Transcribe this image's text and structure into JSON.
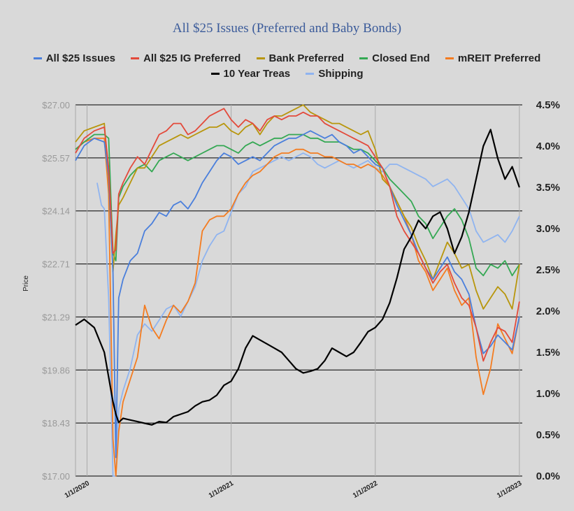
{
  "chart_data": {
    "type": "line",
    "title": "All $25 Issues (Preferred and Baby Bonds)",
    "ylabel": "Price",
    "ylim": [
      17.0,
      27.0
    ],
    "y2lim": [
      0.0,
      4.5
    ],
    "yticks": [
      "$17.00",
      "$18.43",
      "$19.86",
      "$21.29",
      "$22.71",
      "$24.14",
      "$25.57",
      "$27.00"
    ],
    "y2ticks": [
      "0.0%",
      "0.5%",
      "1.0%",
      "1.5%",
      "2.0%",
      "2.5%",
      "3.0%",
      "3.5%",
      "4.0%",
      "4.5%"
    ],
    "xticks": [
      "1/1/2020",
      "1/1/2021",
      "1/1/2022",
      "1/1/2023"
    ],
    "xticks_pos": [
      2020,
      2021,
      2022,
      2023
    ],
    "xlim": [
      2019.92,
      2023.02
    ],
    "grid": "horizontal",
    "legend_position": "top",
    "series": [
      {
        "name": "All $25 Issues",
        "color": "#4a7fdc",
        "axis": "left",
        "x": [
          2019.92,
          2019.98,
          2020.05,
          2020.12,
          2020.15,
          2020.18,
          2020.2,
          2020.22,
          2020.25,
          2020.3,
          2020.35,
          2020.4,
          2020.45,
          2020.5,
          2020.55,
          2020.6,
          2020.65,
          2020.7,
          2020.75,
          2020.8,
          2020.85,
          2020.9,
          2020.95,
          2021.0,
          2021.05,
          2021.1,
          2021.15,
          2021.2,
          2021.25,
          2021.3,
          2021.35,
          2021.4,
          2021.45,
          2021.5,
          2021.55,
          2021.6,
          2021.65,
          2021.7,
          2021.75,
          2021.8,
          2021.85,
          2021.9,
          2021.95,
          2022.0,
          2022.05,
          2022.1,
          2022.15,
          2022.2,
          2022.25,
          2022.3,
          2022.35,
          2022.4,
          2022.45,
          2022.5,
          2022.55,
          2022.6,
          2022.65,
          2022.7,
          2022.75,
          2022.8,
          2022.85,
          2022.9,
          2022.95,
          2023.0
        ],
        "values": [
          25.5,
          25.9,
          26.1,
          26.0,
          25.1,
          22.5,
          17.5,
          21.8,
          22.3,
          22.8,
          23.0,
          23.6,
          23.8,
          24.1,
          24.0,
          24.3,
          24.4,
          24.2,
          24.5,
          24.9,
          25.2,
          25.5,
          25.7,
          25.6,
          25.4,
          25.5,
          25.6,
          25.5,
          25.7,
          25.9,
          26.0,
          26.1,
          26.1,
          26.2,
          26.3,
          26.2,
          26.1,
          26.2,
          26.0,
          25.9,
          25.7,
          25.8,
          25.6,
          25.4,
          25.3,
          24.8,
          24.3,
          23.9,
          23.5,
          23.0,
          22.6,
          22.3,
          22.6,
          22.9,
          22.5,
          22.3,
          21.9,
          21.0,
          20.3,
          20.5,
          20.8,
          20.6,
          20.4,
          21.3
        ]
      },
      {
        "name": "All $25 IG Preferred",
        "color": "#e34a3b",
        "axis": "left",
        "x": [
          2019.92,
          2019.98,
          2020.05,
          2020.12,
          2020.15,
          2020.18,
          2020.2,
          2020.22,
          2020.25,
          2020.3,
          2020.35,
          2020.4,
          2020.45,
          2020.5,
          2020.55,
          2020.6,
          2020.65,
          2020.7,
          2020.75,
          2020.8,
          2020.85,
          2020.9,
          2020.95,
          2021.0,
          2021.05,
          2021.1,
          2021.15,
          2021.2,
          2021.25,
          2021.3,
          2021.35,
          2021.4,
          2021.45,
          2021.5,
          2021.55,
          2021.6,
          2021.65,
          2021.7,
          2021.75,
          2021.8,
          2021.85,
          2021.9,
          2021.95,
          2022.0,
          2022.05,
          2022.1,
          2022.15,
          2022.2,
          2022.25,
          2022.3,
          2022.35,
          2022.4,
          2022.45,
          2022.5,
          2022.55,
          2022.6,
          2022.65,
          2022.7,
          2022.75,
          2022.8,
          2022.85,
          2022.9,
          2022.95,
          2023.0
        ],
        "values": [
          25.7,
          26.1,
          26.3,
          26.4,
          25.3,
          23.0,
          23.1,
          24.6,
          24.9,
          25.3,
          25.6,
          25.4,
          25.8,
          26.2,
          26.3,
          26.5,
          26.5,
          26.2,
          26.3,
          26.5,
          26.7,
          26.8,
          26.9,
          26.6,
          26.4,
          26.6,
          26.5,
          26.3,
          26.6,
          26.7,
          26.6,
          26.7,
          26.7,
          26.8,
          26.7,
          26.7,
          26.5,
          26.4,
          26.3,
          26.2,
          26.1,
          26.0,
          25.9,
          25.6,
          25.3,
          24.8,
          24.0,
          23.6,
          23.3,
          23.0,
          22.6,
          22.2,
          22.5,
          22.7,
          22.2,
          21.8,
          21.6,
          21.0,
          20.1,
          20.6,
          21.0,
          20.9,
          20.6,
          21.7
        ]
      },
      {
        "name": "Bank Preferred",
        "color": "#b8960c",
        "axis": "left",
        "x": [
          2019.92,
          2019.98,
          2020.05,
          2020.12,
          2020.15,
          2020.18,
          2020.2,
          2020.22,
          2020.25,
          2020.3,
          2020.35,
          2020.4,
          2020.45,
          2020.5,
          2020.55,
          2020.6,
          2020.65,
          2020.7,
          2020.75,
          2020.8,
          2020.85,
          2020.9,
          2020.95,
          2021.0,
          2021.05,
          2021.1,
          2021.15,
          2021.2,
          2021.25,
          2021.3,
          2021.35,
          2021.4,
          2021.45,
          2021.5,
          2021.55,
          2021.6,
          2021.65,
          2021.7,
          2021.75,
          2021.8,
          2021.85,
          2021.9,
          2021.95,
          2022.0,
          2022.05,
          2022.1,
          2022.15,
          2022.2,
          2022.25,
          2022.3,
          2022.35,
          2022.4,
          2022.45,
          2022.5,
          2022.55,
          2022.6,
          2022.65,
          2022.7,
          2022.75,
          2022.8,
          2022.85,
          2022.9,
          2022.95,
          2023.0
        ],
        "values": [
          26.0,
          26.3,
          26.4,
          26.5,
          25.0,
          22.5,
          23.5,
          24.3,
          24.5,
          24.9,
          25.3,
          25.3,
          25.6,
          25.9,
          26.0,
          26.1,
          26.2,
          26.1,
          26.2,
          26.3,
          26.4,
          26.4,
          26.5,
          26.3,
          26.2,
          26.4,
          26.5,
          26.2,
          26.5,
          26.7,
          26.7,
          26.8,
          26.9,
          27.0,
          26.8,
          26.7,
          26.6,
          26.5,
          26.5,
          26.4,
          26.3,
          26.2,
          26.3,
          25.8,
          25.0,
          24.8,
          24.4,
          24.0,
          23.7,
          23.2,
          22.8,
          22.3,
          22.8,
          23.3,
          23.0,
          22.6,
          22.7,
          22.0,
          21.5,
          21.8,
          22.1,
          21.9,
          21.5,
          22.7
        ]
      },
      {
        "name": "Closed End",
        "color": "#34a853",
        "axis": "left",
        "x": [
          2019.92,
          2019.98,
          2020.05,
          2020.12,
          2020.15,
          2020.18,
          2020.2,
          2020.22,
          2020.25,
          2020.3,
          2020.35,
          2020.4,
          2020.45,
          2020.5,
          2020.55,
          2020.6,
          2020.65,
          2020.7,
          2020.75,
          2020.8,
          2020.85,
          2020.9,
          2020.95,
          2021.0,
          2021.05,
          2021.1,
          2021.15,
          2021.2,
          2021.25,
          2021.3,
          2021.35,
          2021.4,
          2021.45,
          2021.5,
          2021.55,
          2021.6,
          2021.65,
          2021.7,
          2021.75,
          2021.8,
          2021.85,
          2021.9,
          2021.95,
          2022.0,
          2022.05,
          2022.1,
          2022.15,
          2022.2,
          2022.25,
          2022.3,
          2022.35,
          2022.4,
          2022.45,
          2022.5,
          2022.55,
          2022.6,
          2022.65,
          2022.7,
          2022.75,
          2022.8,
          2022.85,
          2022.9,
          2022.95,
          2023.0
        ],
        "values": [
          25.8,
          26.0,
          26.2,
          26.2,
          26.1,
          23.0,
          22.8,
          24.5,
          24.8,
          25.1,
          25.3,
          25.4,
          25.2,
          25.5,
          25.6,
          25.7,
          25.6,
          25.5,
          25.6,
          25.7,
          25.8,
          25.9,
          25.9,
          25.8,
          25.7,
          25.9,
          26.0,
          25.9,
          26.0,
          26.1,
          26.1,
          26.2,
          26.2,
          26.2,
          26.1,
          26.1,
          26.0,
          26.0,
          26.0,
          25.9,
          25.8,
          25.8,
          25.7,
          25.5,
          25.3,
          25.0,
          24.8,
          24.6,
          24.4,
          24.0,
          23.8,
          23.4,
          23.7,
          24.0,
          24.2,
          23.9,
          23.4,
          22.6,
          22.4,
          22.7,
          22.6,
          22.8,
          22.4,
          22.7
        ]
      },
      {
        "name": "mREIT Preferred",
        "color": "#f47c20",
        "axis": "left",
        "x": [
          2019.92,
          2019.98,
          2020.05,
          2020.12,
          2020.15,
          2020.18,
          2020.2,
          2020.22,
          2020.25,
          2020.3,
          2020.35,
          2020.4,
          2020.45,
          2020.5,
          2020.55,
          2020.6,
          2020.65,
          2020.7,
          2020.75,
          2020.8,
          2020.85,
          2020.9,
          2020.95,
          2021.0,
          2021.05,
          2021.1,
          2021.15,
          2021.2,
          2021.25,
          2021.3,
          2021.35,
          2021.4,
          2021.45,
          2021.5,
          2021.55,
          2021.6,
          2021.65,
          2021.7,
          2021.75,
          2021.8,
          2021.85,
          2021.9,
          2021.95,
          2022.0,
          2022.05,
          2022.1,
          2022.15,
          2022.2,
          2022.25,
          2022.3,
          2022.35,
          2022.4,
          2022.45,
          2022.5,
          2022.55,
          2022.6,
          2022.65,
          2022.7,
          2022.75,
          2022.8,
          2022.85,
          2022.9,
          2022.95,
          2023.0
        ],
        "values": [
          25.8,
          26.0,
          26.1,
          26.1,
          24.6,
          18.0,
          17.0,
          18.2,
          19.0,
          19.6,
          20.2,
          21.6,
          21.0,
          20.7,
          21.2,
          21.6,
          21.4,
          21.7,
          22.2,
          23.6,
          23.9,
          24.0,
          24.0,
          24.2,
          24.6,
          24.9,
          25.1,
          25.2,
          25.4,
          25.6,
          25.7,
          25.7,
          25.8,
          25.8,
          25.7,
          25.7,
          25.6,
          25.6,
          25.5,
          25.4,
          25.4,
          25.3,
          25.4,
          25.3,
          25.1,
          24.8,
          24.4,
          24.0,
          23.5,
          22.8,
          22.5,
          22.0,
          22.3,
          22.6,
          22.0,
          21.6,
          21.8,
          20.2,
          19.2,
          19.9,
          21.1,
          20.7,
          20.3,
          21.3
        ]
      },
      {
        "name": "10 Year Treas",
        "color": "#000000",
        "axis": "right",
        "x": [
          2019.92,
          2019.98,
          2020.05,
          2020.12,
          2020.15,
          2020.18,
          2020.2,
          2020.22,
          2020.25,
          2020.3,
          2020.35,
          2020.4,
          2020.45,
          2020.5,
          2020.55,
          2020.6,
          2020.65,
          2020.7,
          2020.75,
          2020.8,
          2020.85,
          2020.9,
          2020.95,
          2021.0,
          2021.05,
          2021.1,
          2021.15,
          2021.2,
          2021.25,
          2021.3,
          2021.35,
          2021.4,
          2021.45,
          2021.5,
          2021.55,
          2021.6,
          2021.65,
          2021.7,
          2021.75,
          2021.8,
          2021.85,
          2021.9,
          2021.95,
          2022.0,
          2022.05,
          2022.1,
          2022.15,
          2022.2,
          2022.25,
          2022.3,
          2022.35,
          2022.4,
          2022.45,
          2022.5,
          2022.55,
          2022.6,
          2022.65,
          2022.7,
          2022.75,
          2022.8,
          2022.85,
          2022.9,
          2022.95,
          2023.0
        ],
        "values": [
          1.83,
          1.9,
          1.8,
          1.5,
          1.2,
          0.9,
          0.75,
          0.65,
          0.7,
          0.68,
          0.66,
          0.64,
          0.62,
          0.66,
          0.65,
          0.72,
          0.75,
          0.78,
          0.85,
          0.9,
          0.92,
          0.98,
          1.1,
          1.15,
          1.3,
          1.55,
          1.7,
          1.65,
          1.6,
          1.55,
          1.5,
          1.4,
          1.3,
          1.25,
          1.27,
          1.3,
          1.4,
          1.55,
          1.5,
          1.45,
          1.5,
          1.62,
          1.75,
          1.8,
          1.9,
          2.1,
          2.4,
          2.75,
          2.9,
          3.1,
          3.0,
          3.15,
          3.2,
          3.0,
          2.7,
          2.9,
          3.2,
          3.6,
          4.0,
          4.2,
          3.85,
          3.6,
          3.75,
          3.5
        ]
      },
      {
        "name": "Shipping",
        "color": "#8fb4f0",
        "axis": "left",
        "x": [
          2020.07,
          2020.1,
          2020.12,
          2020.15,
          2020.18,
          2020.2,
          2020.22,
          2020.25,
          2020.3,
          2020.35,
          2020.4,
          2020.45,
          2020.5,
          2020.55,
          2020.6,
          2020.65,
          2020.7,
          2020.75,
          2020.8,
          2020.85,
          2020.9,
          2020.95,
          2021.0,
          2021.05,
          2021.1,
          2021.15,
          2021.2,
          2021.25,
          2021.3,
          2021.35,
          2021.4,
          2021.45,
          2021.5,
          2021.55,
          2021.6,
          2021.65,
          2021.7,
          2021.75,
          2021.8,
          2021.85,
          2021.9,
          2021.95,
          2022.0,
          2022.05,
          2022.1,
          2022.15,
          2022.2,
          2022.25,
          2022.3,
          2022.35,
          2022.4,
          2022.45,
          2022.5,
          2022.55,
          2022.6,
          2022.65,
          2022.7,
          2022.75,
          2022.8,
          2022.85,
          2022.9,
          2022.95,
          2023.0
        ],
        "values": [
          24.9,
          24.3,
          24.2,
          21.8,
          17.0,
          17.0,
          18.8,
          19.3,
          19.9,
          20.8,
          21.1,
          20.9,
          21.2,
          21.5,
          21.6,
          21.3,
          21.7,
          22.1,
          22.8,
          23.2,
          23.5,
          23.6,
          24.1,
          24.6,
          24.8,
          25.2,
          25.3,
          25.4,
          25.5,
          25.6,
          25.5,
          25.6,
          25.7,
          25.6,
          25.4,
          25.3,
          25.4,
          25.5,
          25.4,
          25.3,
          25.4,
          25.5,
          25.3,
          25.2,
          25.4,
          25.4,
          25.3,
          25.2,
          25.1,
          25.0,
          24.8,
          24.9,
          25.0,
          24.8,
          24.5,
          24.2,
          23.6,
          23.3,
          23.4,
          23.5,
          23.3,
          23.6,
          24.0
        ]
      }
    ]
  }
}
